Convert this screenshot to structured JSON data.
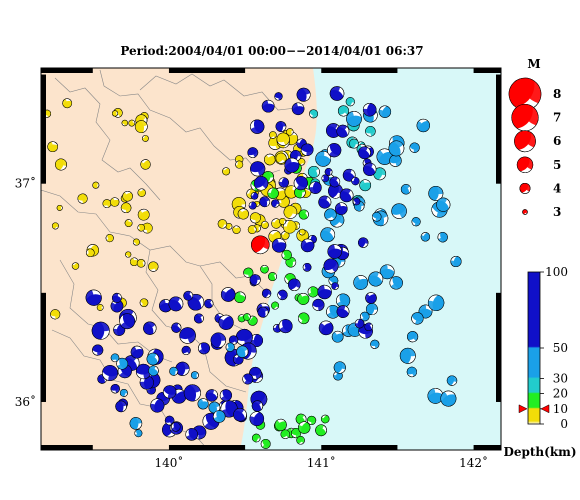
{
  "title": "Period:2004/04/01 00:00−−2014/04/01 06:37",
  "axes": {
    "lon_ticks": [
      {
        "value": 140,
        "label": "140˚"
      },
      {
        "value": 141,
        "label": "141˚"
      },
      {
        "value": 142,
        "label": "142˚"
      }
    ],
    "lat_ticks": [
      {
        "value": 37,
        "label": "37˚"
      },
      {
        "value": 36,
        "label": "36˚"
      }
    ],
    "lon_range": [
      139.16,
      142.18
    ],
    "lat_range": [
      35.78,
      37.53
    ]
  },
  "colors": {
    "land": "#fce4cc",
    "sea": "#d8f8f8",
    "shallow": "#f2dd08",
    "green": "#22ee22",
    "cyan": "#22cccc",
    "mid_blue": "#1aa0e8",
    "deep_blue": "#1010c8",
    "red": "#ff0000"
  },
  "magnitude_legend": {
    "title": "M",
    "items": [
      {
        "label": "8",
        "value": 8
      },
      {
        "label": "7",
        "value": 7
      },
      {
        "label": "6",
        "value": 6
      },
      {
        "label": "5",
        "value": 5
      },
      {
        "label": "4",
        "value": 4
      },
      {
        "label": "3",
        "value": 3
      }
    ]
  },
  "depth_scale": {
    "title": "Depth(km)",
    "ticks": [
      {
        "label": "100",
        "value": 100
      },
      {
        "label": "50",
        "value": 50
      },
      {
        "label": "30",
        "value": 30
      },
      {
        "label": "20",
        "value": 20
      },
      {
        "label": "10",
        "value": 10
      },
      {
        "label": "0",
        "value": 0
      }
    ],
    "marker_depth": 10
  },
  "chart_data": {
    "type": "scatter",
    "title": "Period:2004/04/01 00:00−−2014/04/01 06:37",
    "xlabel": "",
    "ylabel": "",
    "xlim": [
      139.16,
      142.18
    ],
    "ylim": [
      35.78,
      37.53
    ],
    "highlight_event": {
      "lon": 140.6,
      "lat": 36.72,
      "mag": 5.6,
      "depth": 10
    },
    "clusters": [
      {
        "depth_class": "shallow",
        "lon": [
          139.2,
          139.9
        ],
        "lat": [
          36.4,
          37.4
        ],
        "count": 40,
        "mag": [
          3.2,
          4.5
        ]
      },
      {
        "depth_class": "shallow",
        "lon": [
          140.35,
          140.9
        ],
        "lat": [
          36.75,
          37.25
        ],
        "count": 55,
        "mag": [
          3.2,
          4.8
        ]
      },
      {
        "depth_class": "green",
        "lon": [
          140.45,
          140.95
        ],
        "lat": [
          36.35,
          37.1
        ],
        "count": 22,
        "mag": [
          3.5,
          4.5
        ]
      },
      {
        "depth_class": "green",
        "lon": [
          140.55,
          141.1
        ],
        "lat": [
          35.8,
          35.95
        ],
        "count": 14,
        "mag": [
          3.5,
          4.5
        ]
      },
      {
        "depth_class": "cyan",
        "lon": [
          140.9,
          141.4
        ],
        "lat": [
          36.9,
          37.4
        ],
        "count": 14,
        "mag": [
          3.5,
          4.5
        ]
      },
      {
        "depth_class": "mid_blue",
        "lon": [
          141.0,
          141.9
        ],
        "lat": [
          36.0,
          37.35
        ],
        "count": 55,
        "mag": [
          3.8,
          5.2
        ]
      },
      {
        "depth_class": "deep_blue",
        "lon": [
          140.55,
          141.35
        ],
        "lat": [
          36.3,
          37.45
        ],
        "count": 70,
        "mag": [
          3.5,
          5.0
        ]
      },
      {
        "depth_class": "deep_blue",
        "lon": [
          139.5,
          140.6
        ],
        "lat": [
          35.85,
          36.5
        ],
        "count": 70,
        "mag": [
          3.8,
          5.5
        ]
      },
      {
        "depth_class": "mid_blue",
        "lon": [
          139.6,
          140.5
        ],
        "lat": [
          35.85,
          36.3
        ],
        "count": 14,
        "mag": [
          3.5,
          4.5
        ]
      }
    ]
  }
}
